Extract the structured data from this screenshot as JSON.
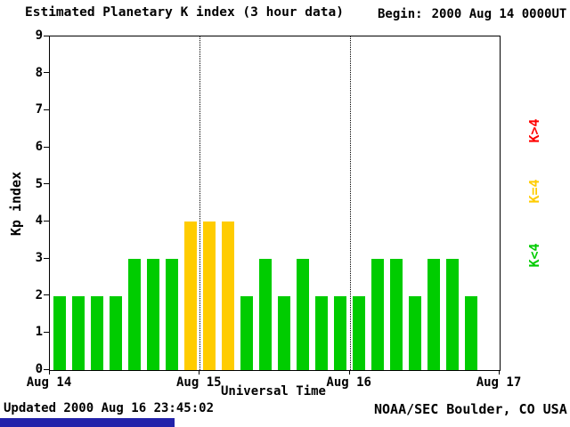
{
  "header": {
    "title": "Estimated Planetary K index (3 hour data)",
    "begin_label": "Begin:",
    "begin_value": "2000 Aug 14 0000UT"
  },
  "footer": {
    "updated": "Updated 2000 Aug 16 23:45:02",
    "source": "NOAA/SEC Boulder, CO USA",
    "strip_color": "#2222AA"
  },
  "chart_data": {
    "type": "bar",
    "title": "Estimated Planetary K index (3 hour data)",
    "xlabel": "Universal Time",
    "ylabel": "Kp index",
    "ylim": [
      0,
      9
    ],
    "y_ticks": [
      0,
      1,
      2,
      3,
      4,
      5,
      6,
      7,
      8,
      9
    ],
    "x_ticks": [
      "Aug 14",
      "Aug 15",
      "Aug 16",
      "Aug 17"
    ],
    "days": 3,
    "bars_per_day": 8,
    "interval_hours": 3,
    "values": [
      2,
      2,
      2,
      2,
      3,
      3,
      3,
      4,
      4,
      4,
      2,
      3,
      2,
      3,
      2,
      2,
      2,
      3,
      3,
      2,
      3,
      3,
      2
    ],
    "colors": {
      "low": "#00CC00",
      "mid": "#FFCC00",
      "high": "#FF0000"
    },
    "legend": [
      {
        "label": "K>4",
        "color": "#FF0000"
      },
      {
        "label": "K=4",
        "color": "#FFCC00"
      },
      {
        "label": "K<4",
        "color": "#00CC00"
      }
    ],
    "gridlines": "dotted vertical lines at day boundaries",
    "legend_position": "right, rotated 90deg"
  }
}
